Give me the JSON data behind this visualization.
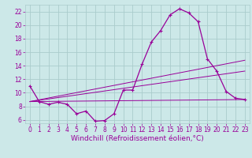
{
  "background_color": "#cce8e8",
  "grid_color": "#aacccc",
  "line_color": "#990099",
  "xlabel": "Windchill (Refroidissement éolien,°C)",
  "xlim": [
    -0.5,
    23.5
  ],
  "ylim": [
    5.5,
    23
  ],
  "xticks": [
    0,
    1,
    2,
    3,
    4,
    5,
    6,
    7,
    8,
    9,
    10,
    11,
    12,
    13,
    14,
    15,
    16,
    17,
    18,
    19,
    20,
    21,
    22,
    23
  ],
  "yticks": [
    6,
    8,
    10,
    12,
    14,
    16,
    18,
    20,
    22
  ],
  "curve1_x": [
    0,
    1,
    2,
    3,
    4,
    5,
    6,
    7,
    8,
    9,
    10,
    11,
    12,
    13,
    14,
    15,
    16,
    17,
    18,
    19,
    20,
    21,
    22,
    23
  ],
  "curve1_y": [
    11.0,
    8.7,
    8.3,
    8.6,
    8.3,
    6.9,
    7.3,
    5.8,
    5.9,
    6.9,
    10.4,
    10.4,
    14.2,
    17.5,
    19.2,
    21.5,
    22.4,
    21.8,
    20.5,
    15.0,
    13.2,
    10.2,
    9.2,
    9.0
  ],
  "curve2_x": [
    0,
    23
  ],
  "curve2_y": [
    8.7,
    9.0
  ],
  "curve3_x": [
    0,
    23
  ],
  "curve3_y": [
    8.7,
    14.8
  ],
  "curve4_x": [
    0,
    23
  ],
  "curve4_y": [
    8.7,
    13.2
  ],
  "font_size_label": 6.5,
  "font_size_tick": 5.5
}
